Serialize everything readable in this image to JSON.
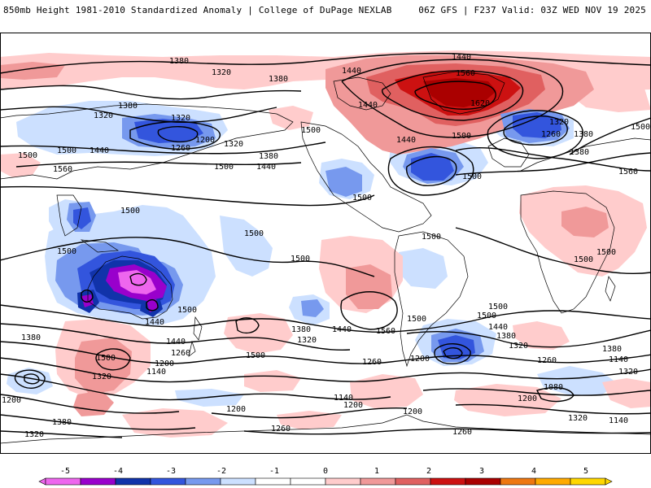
{
  "header": {
    "left": "850mb Height 1981-2010 Standardized Anomaly | College of DuPage NEXLAB",
    "right": "06Z GFS | F237 Valid: 03Z WED NOV 19 2025"
  },
  "colorbar": {
    "ticks": [
      "-5",
      "-4",
      "-3",
      "-2",
      "-1",
      "0",
      "1",
      "2",
      "3",
      "4",
      "5"
    ],
    "colors": [
      "#ee66ee",
      "#9900cc",
      "#1133aa",
      "#3355dd",
      "#7799ee",
      "#cce0ff",
      "#ffffff",
      "#ffffff",
      "#ffcccc",
      "#f09999",
      "#e06060",
      "#cc1111",
      "#aa0000",
      "#ee7711",
      "#ffaa00",
      "#ffd700"
    ]
  },
  "contour_labels": {
    "l1380a": "1380",
    "l1440a": "1440",
    "l1560a": "1560",
    "l1620": "1620",
    "l1440b": "1440",
    "l1500a": "1500",
    "l1260a": "1260",
    "l1380b": "1380",
    "l1500b": "1500",
    "l1380c": "1380",
    "l1320a": "1320",
    "l1200a": "1200",
    "l1260b": "1260",
    "l1320b": "1320",
    "l1440c": "1440",
    "l1380d": "1380",
    "l1500c": "1500",
    "l1440d": "1440",
    "l1500d": "1500",
    "l1560b": "1560",
    "l1500e": "1500",
    "l1500f": "1500",
    "l1500g": "1500",
    "l1500h": "1500",
    "l1500i": "1500",
    "l1500j": "1500",
    "l1500k": "1500",
    "l1440e": "1440",
    "l1500l": "1500",
    "l1440f": "1440",
    "l1560c": "1560",
    "l1500m": "1500",
    "l1500n": "1500",
    "l1440g": "1440",
    "l1380e": "1380",
    "l1320c": "1320",
    "l1500o": "1500",
    "l1380f": "1380",
    "l1440h": "1440",
    "l1500p": "1500",
    "l1380g": "1380",
    "l1320d": "1320",
    "l1260c": "1260",
    "l1200b": "1200",
    "l1140a": "1140",
    "l1320e": "1320",
    "l1200c": "1200",
    "l1140b": "1140",
    "l1260d": "1260",
    "l1200d": "1200",
    "l1260e": "1260",
    "l1140c": "1140",
    "l1080": "1080",
    "l1200e": "1200",
    "l1200f": "1200",
    "l1140d": "1140",
    "l1200g": "1200",
    "l1200h": "1200",
    "l1320f": "1320",
    "l1260f": "1260",
    "l1260g": "1260",
    "l1380h": "1380",
    "l1320g": "1320",
    "l1200i": "1200",
    "l1500q": "1500",
    "l1500r": "1500",
    "l1560d": "1560",
    "l1500s": "1500",
    "l1320h": "1320",
    "l1320i": "1320",
    "l1380i": "1380",
    "l1440i": "1440",
    "l1500t": "1500",
    "l1500u": "1500",
    "l1320j": "1320",
    "l1380j": "1380",
    "l1440j": "1440",
    "l1380k": "1380",
    "l1320k": "1320",
    "l1140e": "1140"
  }
}
